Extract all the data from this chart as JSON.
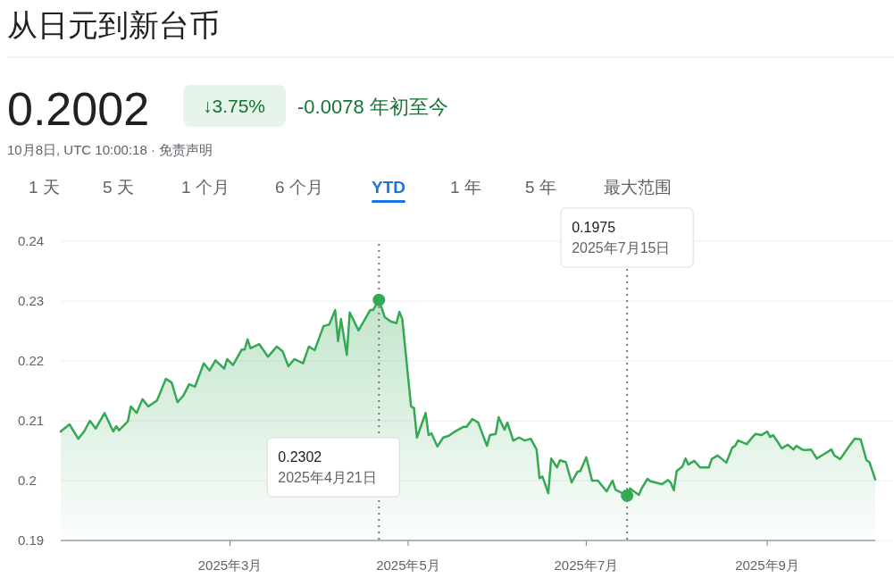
{
  "chart_data": {
    "type": "area",
    "title": "从日元到新台币",
    "color": "#34a853",
    "annotations": [
      "0.2002",
      "↓3.75%",
      "-0.0078 年初至今",
      "10月8日, UTC 10:00:18 · 免责声明",
      "1 天",
      "5 天",
      "1 个月",
      "6 个月",
      "YTD",
      "1 年",
      "5 年",
      "最大范围"
    ],
    "ref_lines": [
      {
        "axis": "x",
        "value": "2025-04-21",
        "color": "#777777",
        "line_style": "dotted",
        "label": "0.2302\n2025年4月21日"
      },
      {
        "axis": "x",
        "value": "2025-07-15",
        "color": "#777777",
        "line_style": "dotted",
        "label": "0.1975\n2025年7月15日"
      }
    ],
    "xlim": [
      "2025-01-02",
      "2025-10-08"
    ],
    "xticks": [
      {
        "value": "2025-03-01",
        "label": "2025年3月"
      },
      {
        "value": "2025-05-01",
        "label": "2025年5月"
      },
      {
        "value": "2025-07-01",
        "label": "2025年7月"
      },
      {
        "value": "2025-09-01",
        "label": "2025年9月"
      }
    ],
    "ylim": [
      0.19,
      0.24
    ],
    "yticks": [
      0.19,
      0.2,
      0.21,
      0.22,
      0.23,
      0.24
    ],
    "grid": "y",
    "x": [
      "2025-01-02",
      "2025-01-05",
      "2025-01-08",
      "2025-01-10",
      "2025-01-12",
      "2025-01-14",
      "2025-01-17",
      "2025-01-20",
      "2025-01-21",
      "2025-01-22",
      "2025-01-25",
      "2025-01-26",
      "2025-01-28",
      "2025-01-30",
      "2025-02-01",
      "2025-02-04",
      "2025-02-07",
      "2025-02-09",
      "2025-02-11",
      "2025-02-13",
      "2025-02-15",
      "2025-02-17",
      "2025-02-20",
      "2025-02-22",
      "2025-02-24",
      "2025-02-27",
      "2025-02-28",
      "2025-03-02",
      "2025-03-05",
      "2025-03-06",
      "2025-03-07",
      "2025-03-08",
      "2025-03-11",
      "2025-03-14",
      "2025-03-17",
      "2025-03-19",
      "2025-03-21",
      "2025-03-23",
      "2025-03-26",
      "2025-03-28",
      "2025-03-30",
      "2025-04-02",
      "2025-04-04",
      "2025-04-06",
      "2025-04-07",
      "2025-04-08",
      "2025-04-10",
      "2025-04-11",
      "2025-04-14",
      "2025-04-18",
      "2025-04-19",
      "2025-04-21",
      "2025-04-23",
      "2025-04-25",
      "2025-04-27",
      "2025-04-28",
      "2025-04-29",
      "2025-04-30",
      "2025-05-02",
      "2025-05-03",
      "2025-05-04",
      "2025-05-07",
      "2025-05-08",
      "2025-05-09",
      "2025-05-11",
      "2025-05-13",
      "2025-05-15",
      "2025-05-17",
      "2025-05-20",
      "2025-05-21",
      "2025-05-23",
      "2025-05-25",
      "2025-05-28",
      "2025-05-29",
      "2025-05-31",
      "2025-06-01",
      "2025-06-03",
      "2025-06-04",
      "2025-06-06",
      "2025-06-08",
      "2025-06-10",
      "2025-06-12",
      "2025-06-14",
      "2025-06-15",
      "2025-06-16",
      "2025-06-18",
      "2025-06-19",
      "2025-06-21",
      "2025-06-22",
      "2025-06-24",
      "2025-06-26",
      "2025-06-28",
      "2025-06-29",
      "2025-07-01",
      "2025-07-03",
      "2025-07-05",
      "2025-07-08",
      "2025-07-10",
      "2025-07-11",
      "2025-07-15",
      "2025-07-16",
      "2025-07-19",
      "2025-07-20",
      "2025-07-22",
      "2025-07-23",
      "2025-07-27",
      "2025-07-29",
      "2025-07-30",
      "2025-07-31",
      "2025-08-01",
      "2025-08-03",
      "2025-08-04",
      "2025-08-05",
      "2025-08-07",
      "2025-08-09",
      "2025-08-12",
      "2025-08-13",
      "2025-08-15",
      "2025-08-18",
      "2025-08-20",
      "2025-08-21",
      "2025-08-22",
      "2025-08-25",
      "2025-08-27",
      "2025-08-28",
      "2025-08-30",
      "2025-09-01",
      "2025-09-02",
      "2025-09-03",
      "2025-09-04",
      "2025-09-06",
      "2025-09-08",
      "2025-09-10",
      "2025-09-11",
      "2025-09-13",
      "2025-09-14",
      "2025-09-16",
      "2025-09-18",
      "2025-09-20",
      "2025-09-23",
      "2025-09-24",
      "2025-09-26",
      "2025-09-29",
      "2025-10-01",
      "2025-10-03",
      "2025-10-05",
      "2025-10-06",
      "2025-10-08"
    ],
    "values": [
      0.2082,
      0.2094,
      0.207,
      0.2082,
      0.21,
      0.2087,
      0.2113,
      0.2082,
      0.2091,
      0.2084,
      0.2099,
      0.2124,
      0.2113,
      0.2136,
      0.2124,
      0.2134,
      0.217,
      0.2164,
      0.2131,
      0.2142,
      0.2161,
      0.2157,
      0.2196,
      0.2184,
      0.2201,
      0.2187,
      0.2203,
      0.2193,
      0.2219,
      0.2219,
      0.2236,
      0.2221,
      0.2228,
      0.2207,
      0.2224,
      0.2216,
      0.2191,
      0.2203,
      0.2196,
      0.2224,
      0.2218,
      0.2258,
      0.2261,
      0.2285,
      0.2233,
      0.227,
      0.221,
      0.2281,
      0.2251,
      0.2285,
      0.2285,
      0.2302,
      0.2273,
      0.2266,
      0.2263,
      0.2282,
      0.227,
      0.2221,
      0.2124,
      0.2121,
      0.2072,
      0.2113,
      0.2076,
      0.2079,
      0.2057,
      0.2072,
      0.2075,
      0.2082,
      0.209,
      0.209,
      0.2103,
      0.2097,
      0.2058,
      0.2076,
      0.2078,
      0.2106,
      0.2085,
      0.2097,
      0.2067,
      0.2072,
      0.2067,
      0.207,
      0.2052,
      0.2004,
      0.2007,
      0.1979,
      0.2037,
      0.2022,
      0.2034,
      0.2031,
      0.1997,
      0.2015,
      0.2016,
      0.2039,
      0.2,
      0.2,
      0.1982,
      0.2,
      0.1985,
      0.1975,
      0.1987,
      0.1976,
      0.1987,
      0.2003,
      0.1999,
      0.1994,
      0.2001,
      0.1996,
      0.1984,
      0.2016,
      0.2024,
      0.2037,
      0.2027,
      0.2033,
      0.2022,
      0.2022,
      0.2036,
      0.2042,
      0.203,
      0.2055,
      0.2058,
      0.2067,
      0.2061,
      0.2073,
      0.2078,
      0.2076,
      0.2082,
      0.2073,
      0.2076,
      0.2069,
      0.2054,
      0.206,
      0.2052,
      0.2058,
      0.2052,
      0.2051,
      0.2052,
      0.2037,
      0.2043,
      0.2052,
      0.2042,
      0.2036,
      0.2057,
      0.207,
      0.2069,
      0.2034,
      0.2031,
      0.2002
    ]
  }
}
